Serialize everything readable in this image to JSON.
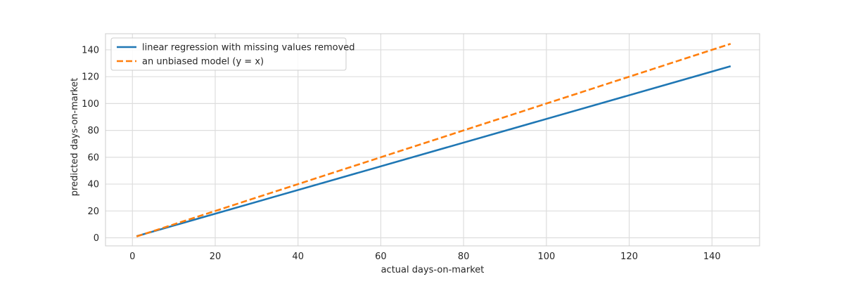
{
  "chart_data": {
    "type": "line",
    "xlabel": "actual days-on-market",
    "ylabel": "predicted days-on-market",
    "xlim": [
      -6.5,
      151.5
    ],
    "ylim": [
      -6,
      152
    ],
    "xticks": [
      0,
      20,
      40,
      60,
      80,
      100,
      120,
      140
    ],
    "yticks": [
      0,
      20,
      40,
      60,
      80,
      100,
      120,
      140
    ],
    "grid": true,
    "legend_position": "top-left",
    "series": [
      {
        "name": "linear regression with missing values removed",
        "color": "#1f77b4",
        "style": "solid",
        "x": [
          1,
          144.5
        ],
        "y": [
          1.2,
          127.8
        ]
      },
      {
        "name": "an unbiased model (y = x)",
        "color": "#ff7f0e",
        "style": "dashed",
        "x": [
          1,
          144.5
        ],
        "y": [
          1,
          144.5
        ]
      }
    ]
  }
}
